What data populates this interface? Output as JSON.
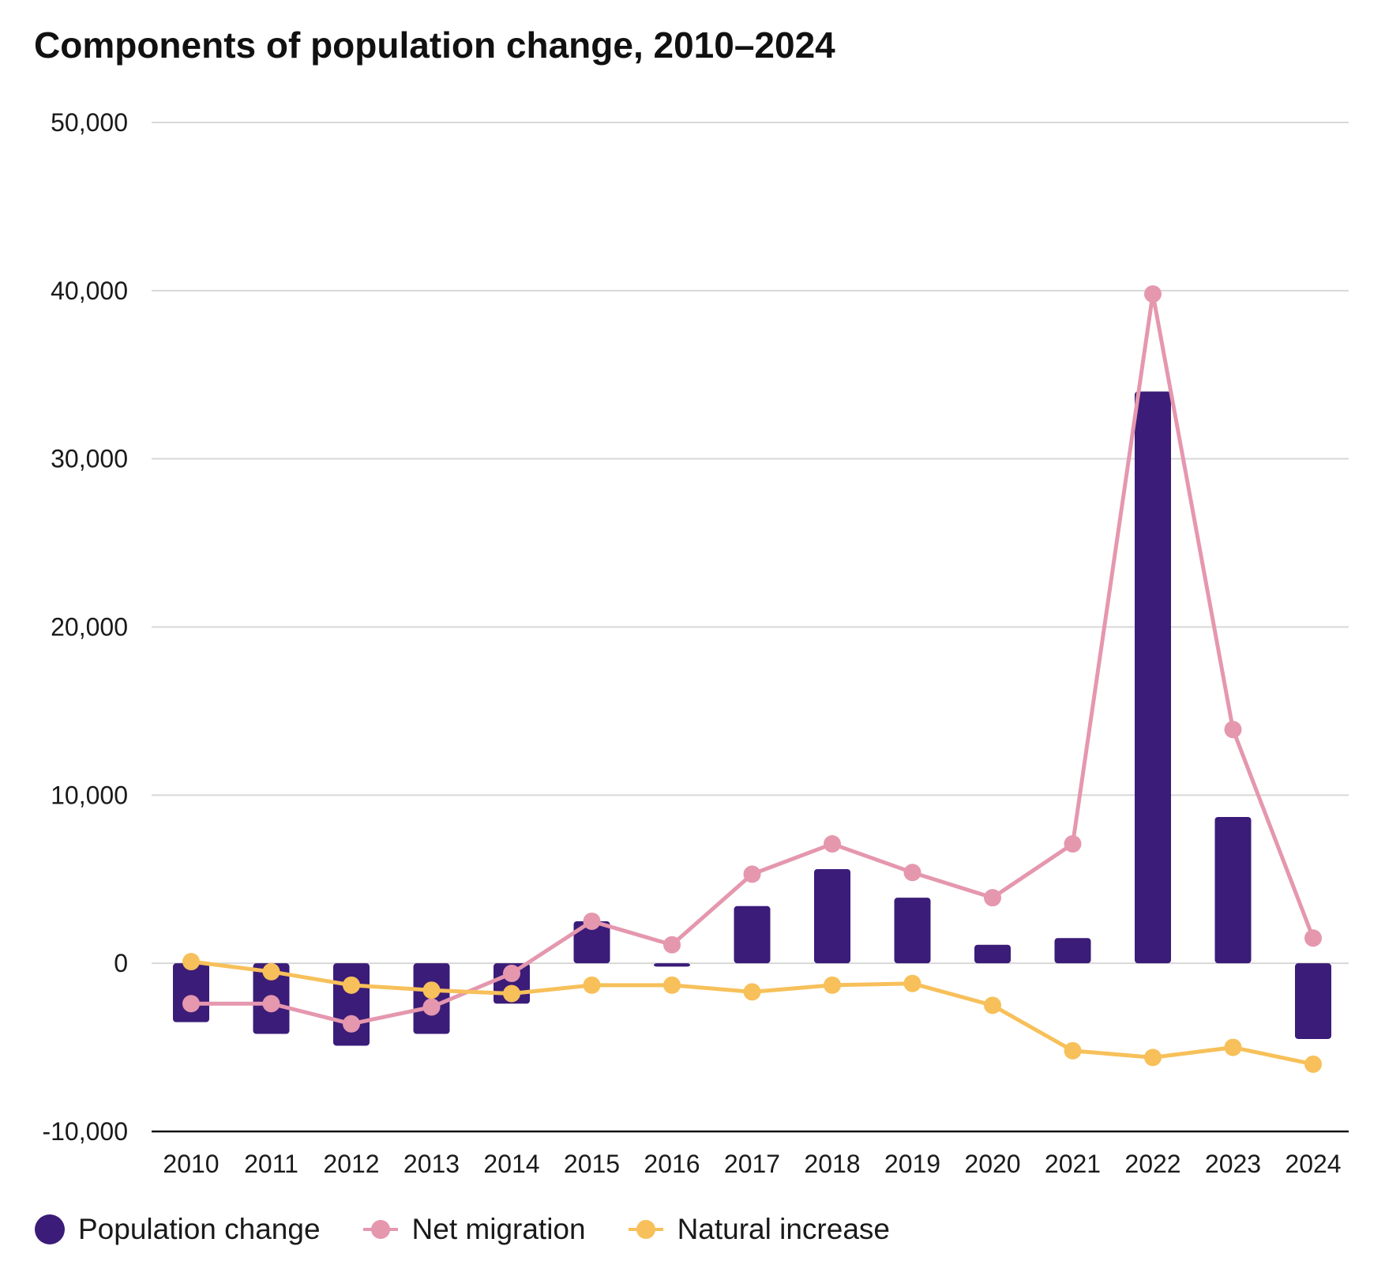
{
  "chart_data": {
    "type": "bar",
    "title": "Components of population change, 2010–2024",
    "xlabel": "",
    "ylabel": "",
    "categories": [
      "2010",
      "2011",
      "2012",
      "2013",
      "2014",
      "2015",
      "2016",
      "2017",
      "2018",
      "2019",
      "2020",
      "2021",
      "2022",
      "2023",
      "2024"
    ],
    "ylim": [
      -10000,
      50000
    ],
    "yticks": [
      50000,
      40000,
      30000,
      20000,
      10000,
      0,
      -10000
    ],
    "ytick_labels": [
      "50,000",
      "40,000",
      "30,000",
      "20,000",
      "10,000",
      "0",
      "-10,000"
    ],
    "grid": true,
    "legend_position": "bottom-left",
    "series": [
      {
        "name": "Population change",
        "type": "bar",
        "color": "#3b1c78",
        "values": [
          -3500,
          -4200,
          -4900,
          -4200,
          -2400,
          2500,
          -200,
          3400,
          5600,
          3900,
          1100,
          1500,
          34000,
          8700,
          -4500
        ]
      },
      {
        "name": "Net migration",
        "type": "line",
        "color": "#e597ae",
        "values": [
          -2400,
          -2400,
          -3600,
          -2600,
          -600,
          2500,
          1100,
          5300,
          7100,
          5400,
          3900,
          7100,
          39800,
          13900,
          1500
        ]
      },
      {
        "name": "Natural increase",
        "type": "line",
        "color": "#f7c05a",
        "values": [
          100,
          -500,
          -1300,
          -1600,
          -1800,
          -1300,
          -1300,
          -1700,
          -1300,
          -1200,
          -2500,
          -5200,
          -5600,
          -5000,
          -6000
        ]
      }
    ]
  }
}
